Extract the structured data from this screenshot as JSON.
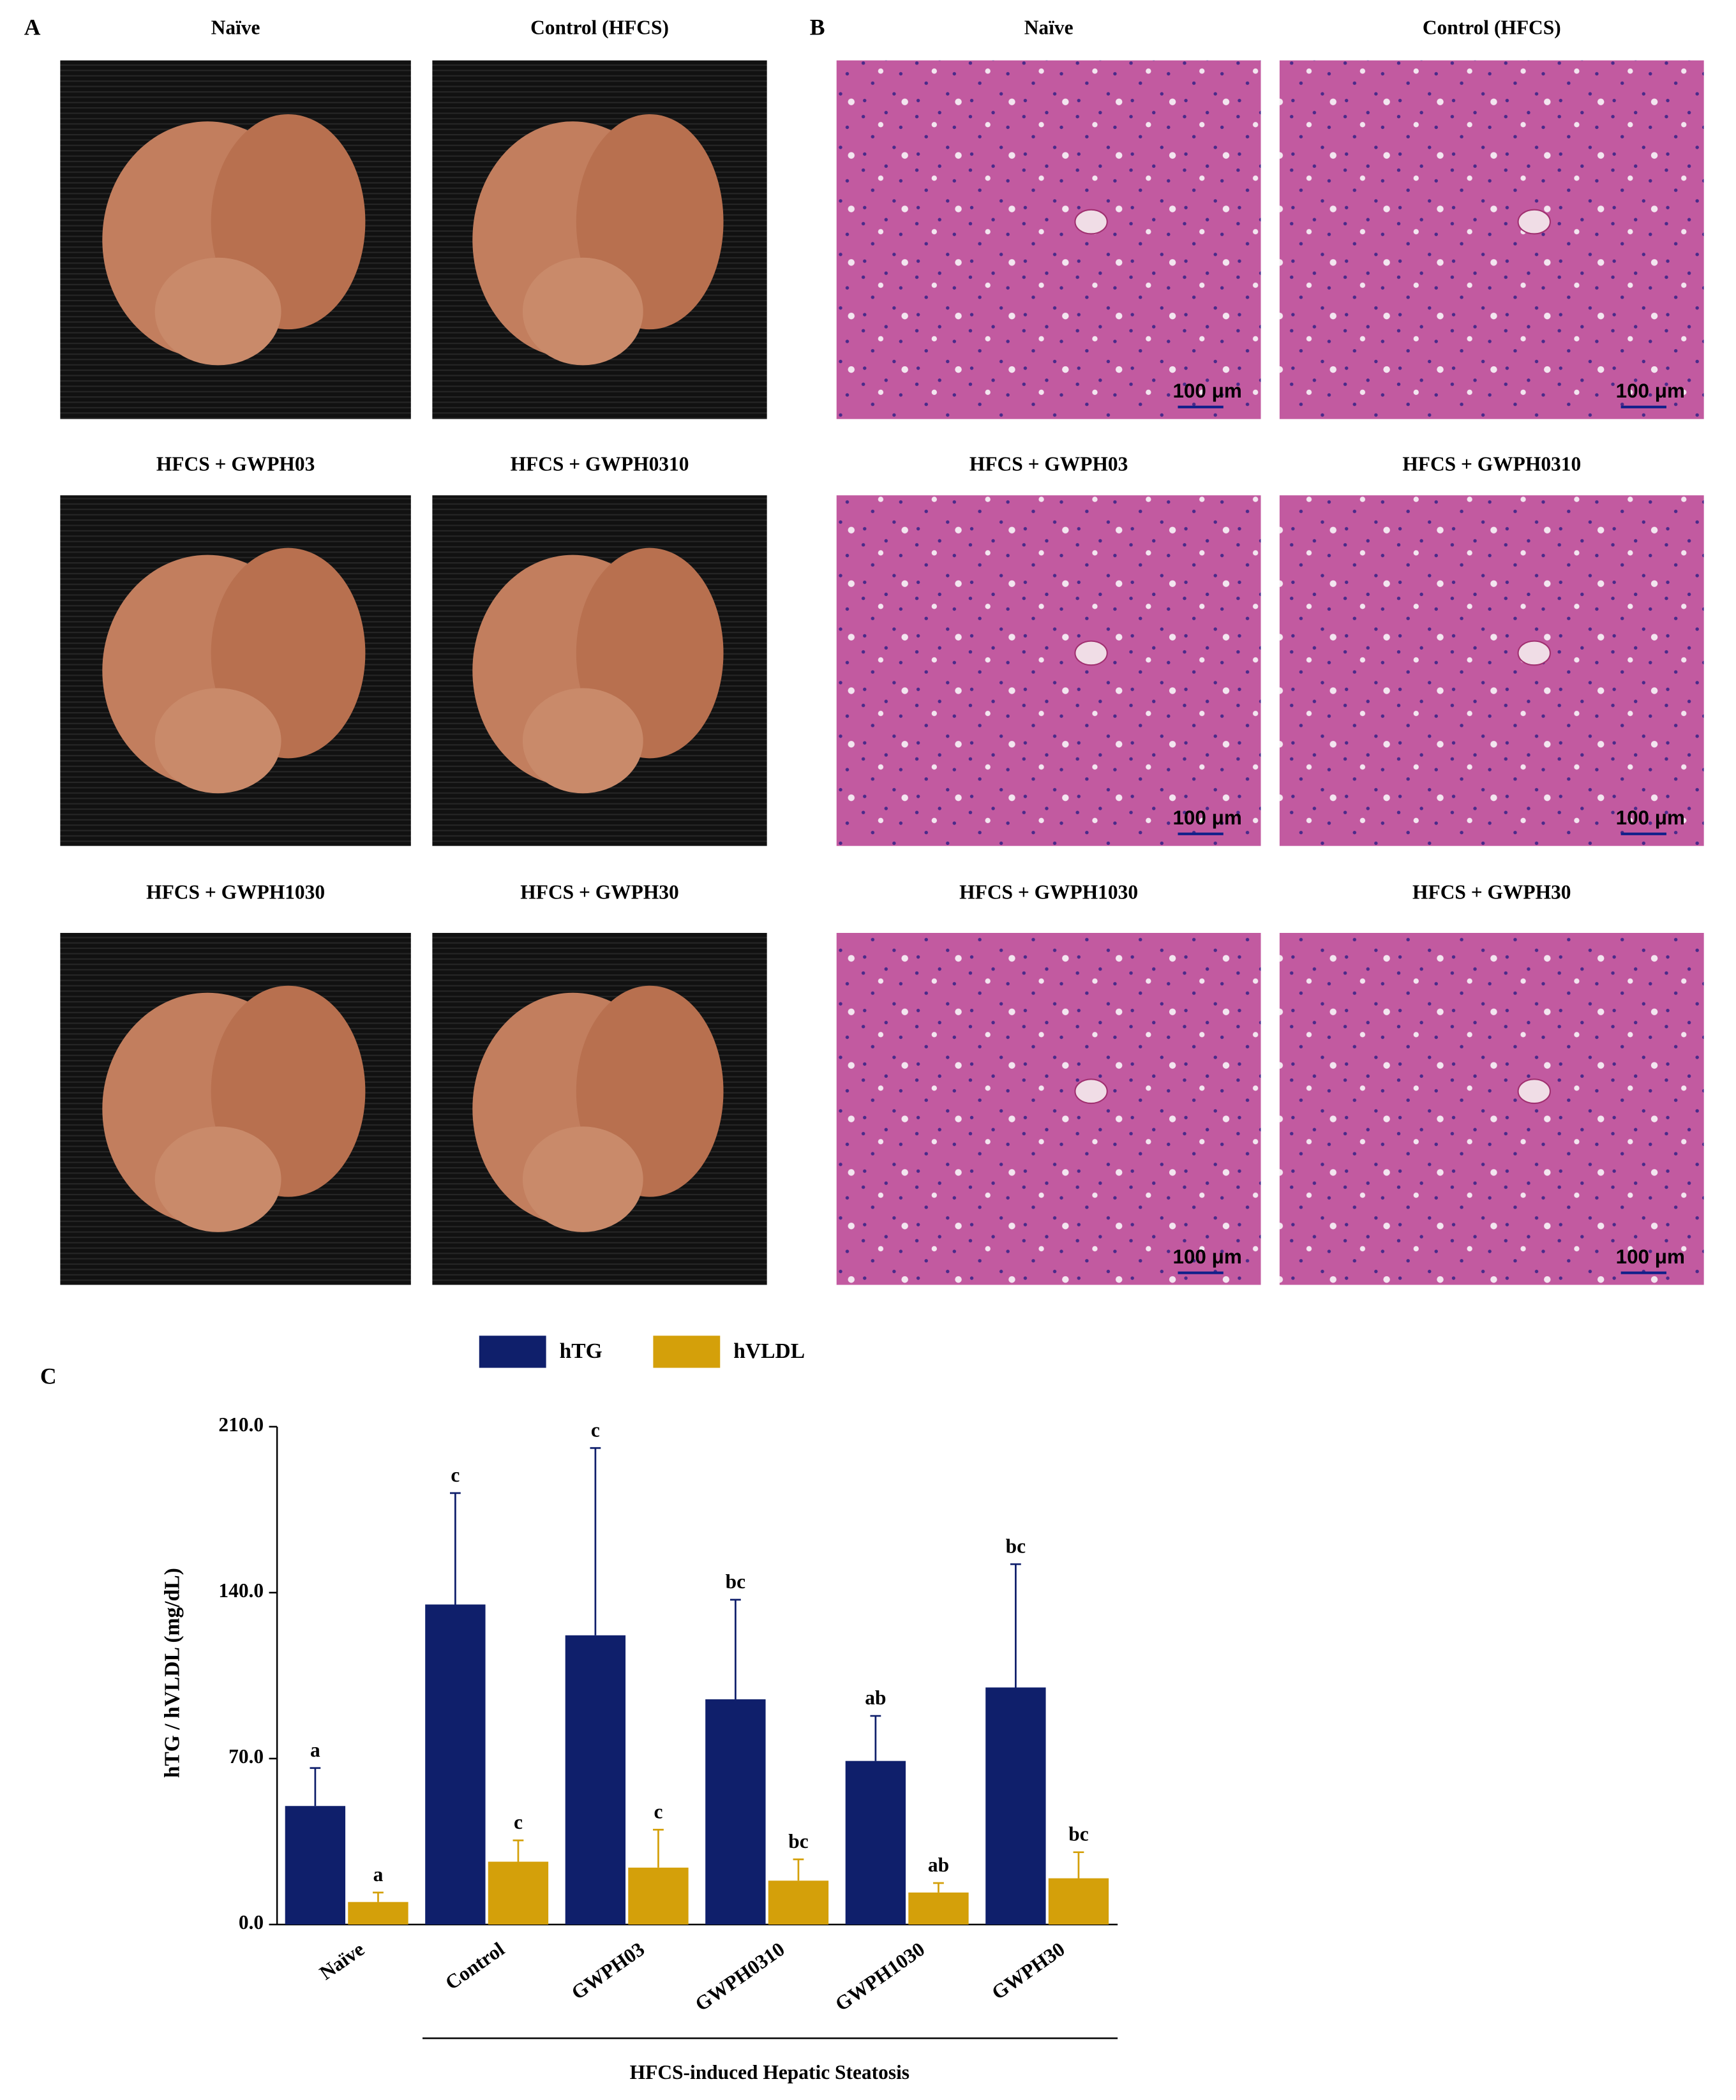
{
  "panel_a": {
    "label": "A",
    "titles": [
      "Naïve",
      "Control (HFCS)",
      "HFCS + GWPH03",
      "HFCS + GWPH0310",
      "HFCS + GWPH1030",
      "HFCS + GWPH30"
    ]
  },
  "panel_b": {
    "label": "B",
    "titles": [
      "Naïve",
      "Control (HFCS)",
      "HFCS + GWPH03",
      "HFCS + GWPH0310",
      "HFCS + GWPH1030",
      "HFCS + GWPH30"
    ],
    "scale_bar": "100 μm"
  },
  "chart_data": {
    "type": "bar",
    "panel_label": "C",
    "y_label": "hTG / hVLDL (mg/dL)",
    "group_label": "HFCS-induced Hepatic Steatosis",
    "categories": [
      "Naïve",
      "Control",
      "GWPH03",
      "GWPH0310",
      "GWPH1030",
      "GWPH30"
    ],
    "series": [
      {
        "name": "hTG",
        "color": "#0f1f6b",
        "values": [
          50,
          135,
          122,
          95,
          69,
          100
        ],
        "errors": [
          16,
          47,
          79,
          42,
          19,
          52
        ],
        "letters": [
          "a",
          "c",
          "c",
          "bc",
          "ab",
          "bc"
        ]
      },
      {
        "name": "hVLDL",
        "color": "#d4a00a",
        "values": [
          9.5,
          26.5,
          24,
          18.5,
          13.5,
          19.5
        ],
        "errors": [
          4,
          9,
          16,
          9,
          4,
          11
        ],
        "letters": [
          "a",
          "c",
          "c",
          "bc",
          "ab",
          "bc"
        ]
      }
    ],
    "ylim": [
      0,
      210
    ],
    "yticks": [
      {
        "value": 0,
        "label": "0.0"
      },
      {
        "value": 70,
        "label": "70.0"
      },
      {
        "value": 140,
        "label": "140.0"
      },
      {
        "value": 210,
        "label": "210.0"
      }
    ]
  }
}
